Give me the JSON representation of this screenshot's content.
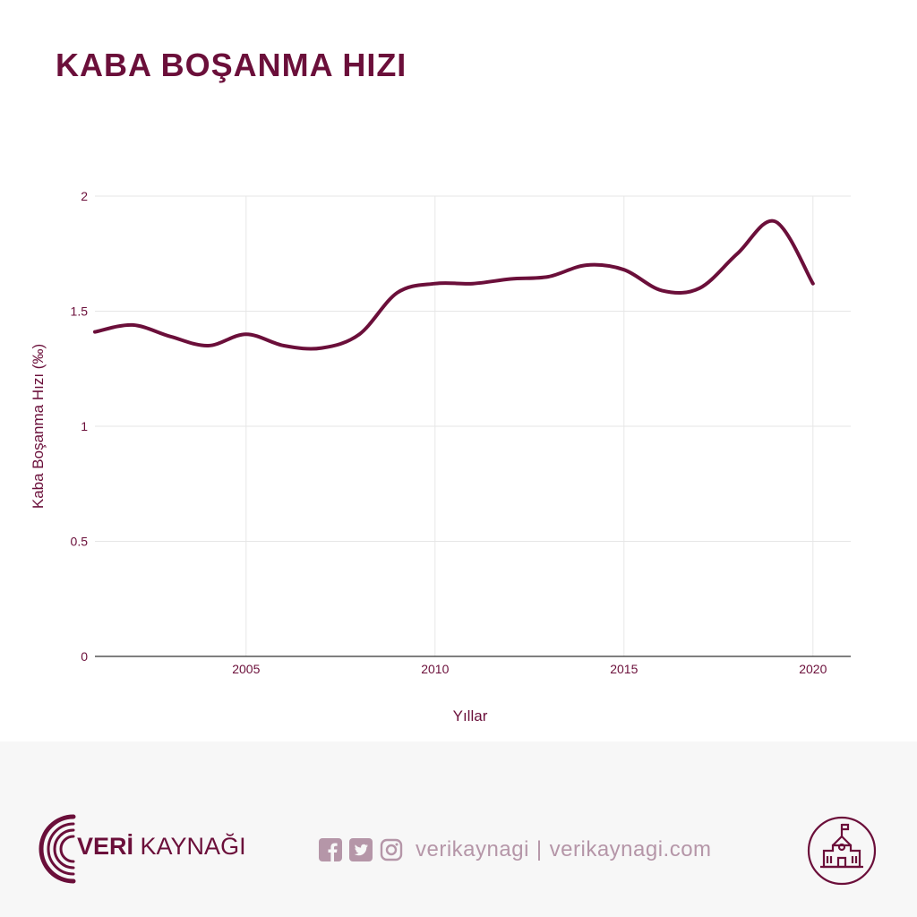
{
  "page": {
    "title": "KABA BOŞANMA HIZI"
  },
  "colors": {
    "primary": "#6b0f3a",
    "muted": "#b596a8",
    "grid": "#e6e6e6",
    "footer_bg": "#f7f7f7"
  },
  "chart_data": {
    "type": "line",
    "xlabel": "Yıllar",
    "ylabel": "Kaba Boşanma Hızı (‰)",
    "xlim": [
      2001,
      2021
    ],
    "ylim": [
      0,
      2
    ],
    "x_ticks": [
      2005,
      2010,
      2015,
      2020
    ],
    "y_ticks": [
      0,
      0.5,
      1,
      1.5,
      2
    ],
    "y_tick_labels": [
      "0",
      "0.5",
      "1",
      "1.5",
      "2"
    ],
    "grid": true,
    "legend": "none",
    "series": [
      {
        "x": [
          2001,
          2002,
          2003,
          2004,
          2005,
          2006,
          2007,
          2008,
          2009,
          2010,
          2011,
          2012,
          2013,
          2014,
          2015,
          2016,
          2017,
          2018,
          2019,
          2020
        ],
        "y": [
          1.41,
          1.44,
          1.39,
          1.35,
          1.4,
          1.35,
          1.34,
          1.4,
          1.58,
          1.62,
          1.62,
          1.64,
          1.65,
          1.7,
          1.68,
          1.59,
          1.6,
          1.75,
          1.89,
          1.62
        ]
      }
    ]
  },
  "footer": {
    "brand_part1": "VERİ",
    "brand_part2": " KAYNAĞI",
    "social_handle": "verikaynagi",
    "social_separator": "|",
    "website": "verikaynagi.com",
    "icons": [
      "brand-signal-icon",
      "facebook-icon",
      "twitter-icon",
      "instagram-icon",
      "school-building-icon"
    ]
  }
}
